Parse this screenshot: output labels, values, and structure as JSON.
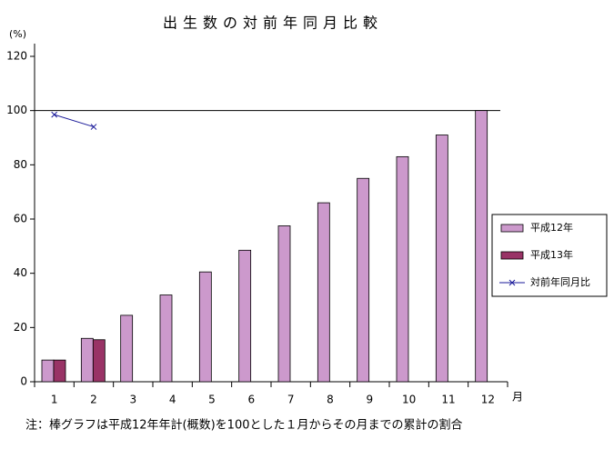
{
  "chart_data": {
    "type": "bar",
    "title": "出生数の対前年同月比較",
    "y_label": "(%)",
    "x_label": "月",
    "note": "注：棒グラフは平成12年年計(概数)を100とした１月からその月までの累計の割合",
    "categories": [
      "1",
      "2",
      "3",
      "4",
      "5",
      "6",
      "7",
      "8",
      "9",
      "10",
      "11",
      "12"
    ],
    "series": [
      {
        "name": "平成12年",
        "type": "bar",
        "color": "#cc99cc",
        "values": [
          8,
          16,
          24.5,
          32,
          40.5,
          48.5,
          57.5,
          66,
          75,
          83,
          91,
          100
        ]
      },
      {
        "name": "平成13年",
        "type": "bar",
        "color": "#993366",
        "values": [
          8,
          15.5,
          null,
          null,
          null,
          null,
          null,
          null,
          null,
          null,
          null,
          null
        ]
      },
      {
        "name": "対前年同月比",
        "type": "line",
        "color": "#1a1a99",
        "values": [
          98.5,
          94,
          null,
          null,
          null,
          null,
          null,
          null,
          null,
          null,
          null,
          null
        ]
      }
    ],
    "ylim": [
      0,
      120
    ],
    "yticks": [
      0,
      20,
      40,
      60,
      80,
      100,
      120
    ],
    "reference_line": 100,
    "legend": "right"
  }
}
